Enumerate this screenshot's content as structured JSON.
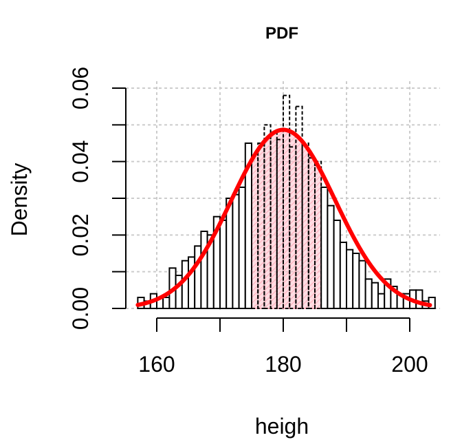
{
  "chart_data": {
    "type": "bar",
    "title": "PDF",
    "xlabel": "heigh",
    "ylabel": "Density",
    "x_ticks": [
      "160",
      "180",
      "200"
    ],
    "y_ticks": [
      "0.00",
      "0.02",
      "0.04",
      "0.06"
    ],
    "xlim": [
      155,
      204
    ],
    "ylim": [
      0,
      0.06
    ],
    "grid": true,
    "bin_width": 1,
    "bins_start": 157,
    "histogram_density": [
      0.003,
      0.002,
      0.004,
      0.003,
      0.003,
      0.011,
      0.009,
      0.013,
      0.014,
      0.017,
      0.021,
      0.02,
      0.025,
      0.024,
      0.03,
      0.031,
      0.033,
      0.045,
      0.041,
      0.045,
      0.05,
      0.048,
      0.046,
      0.058,
      0.044,
      0.055,
      0.045,
      0.041,
      0.04,
      0.033,
      0.028,
      0.024,
      0.018,
      0.016,
      0.015,
      0.013,
      0.008,
      0.007,
      0.004,
      0.008,
      0.006,
      0.004,
      0.004,
      0.005,
      0.005,
      0.002,
      0.003
    ],
    "normal_curve": {
      "mean": 180,
      "sd": 8.2,
      "color": "#ff0000"
    },
    "shaded_interval": [
      175,
      186
    ],
    "shade_color": "#ffc0cb",
    "bar_fill": "#ffffff",
    "bar_stroke": "#000000"
  }
}
